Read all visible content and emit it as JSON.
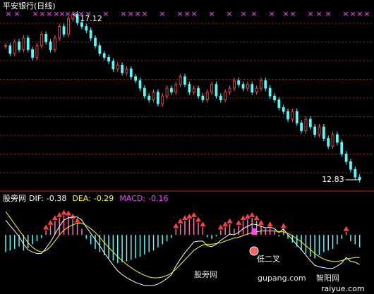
{
  "chart_data": [
    {
      "type": "candle",
      "title": "平安银行(日线)",
      "up_color": "#ff5454",
      "down_color": "#54fcfc",
      "values": [
        16.3,
        16.1,
        16.4,
        16.2,
        16.5,
        16.2,
        16.0,
        16.3,
        16.6,
        16.4,
        16.2,
        16.5,
        16.8,
        16.6,
        17.0,
        17.12,
        16.9,
        16.8,
        16.7,
        16.5,
        16.3,
        16.1,
        16.0,
        15.9,
        15.7,
        15.8,
        15.6,
        15.7,
        15.5,
        15.4,
        15.2,
        15.0,
        14.9,
        15.1,
        14.8,
        15.0,
        15.2,
        15.1,
        15.3,
        15.5,
        15.3,
        15.1,
        15.2,
        15.0,
        14.9,
        15.1,
        15.3,
        15.0,
        14.9,
        15.1,
        15.2,
        15.4,
        15.3,
        15.2,
        15.3,
        15.1,
        15.2,
        15.4,
        15.2,
        15.0,
        14.9,
        14.7,
        14.6,
        14.4,
        14.6,
        14.3,
        14.1,
        14.4,
        14.2,
        14.0,
        14.2,
        13.9,
        13.7,
        14.0,
        13.8,
        13.5,
        13.3,
        13.1,
        12.9,
        12.83
      ]
    },
    {
      "type": "macd",
      "title": "股旁网",
      "annotation": "低二叉",
      "up_color": "#ff6fb0",
      "down_color": "#54fcfc",
      "hist_name": "MACD:",
      "hist_color": "#ff44ff",
      "values": [
        -0.22,
        -0.2,
        -0.18,
        -0.15,
        -0.2,
        -0.17,
        -0.12,
        -0.08,
        -0.04,
        0.06,
        0.12,
        0.18,
        0.22,
        0.25,
        0.24,
        0.2,
        0.15,
        0.08,
        -0.05,
        -0.12,
        -0.18,
        -0.22,
        -0.26,
        -0.3,
        -0.33,
        -0.36,
        -0.35,
        -0.34,
        -0.32,
        -0.3,
        -0.28,
        -0.25,
        -0.22,
        -0.2,
        -0.16,
        -0.12,
        -0.08,
        -0.04,
        0.08,
        0.14,
        0.18,
        0.2,
        0.22,
        0.16,
        0.1,
        -0.03,
        -0.05,
        -0.02,
        0.06,
        0.1,
        0.14,
        0.08,
        0.12,
        0.18,
        0.2,
        0.22,
        0.18,
        0.12,
        0.08,
        0.1,
        0.06,
        -0.02,
        0.08,
        -0.05,
        -0.1,
        -0.15,
        -0.2,
        -0.24,
        -0.28,
        -0.3,
        -0.26,
        -0.22,
        -0.2,
        -0.18,
        -0.12,
        -0.05,
        0.04,
        -0.08,
        -0.12,
        -0.16
      ],
      "series": [
        {
          "name": "DIF:",
          "color": "#ffffff",
          "values": [
            0.19,
            0.12,
            0.05,
            -0.02,
            -0.12,
            -0.19,
            -0.22,
            -0.24,
            -0.24,
            -0.17,
            -0.09,
            0.01,
            0.11,
            0.19,
            0.22,
            0.23,
            0.23,
            0.19,
            0.1,
            0.02,
            -0.06,
            -0.14,
            -0.23,
            -0.31,
            -0.39,
            -0.46,
            -0.51,
            -0.55,
            -0.58,
            -0.61,
            -0.63,
            -0.65,
            -0.65,
            -0.65,
            -0.63,
            -0.6,
            -0.56,
            -0.51,
            -0.4,
            -0.31,
            -0.23,
            -0.16,
            -0.09,
            -0.08,
            -0.08,
            -0.14,
            -0.15,
            -0.12,
            -0.07,
            -0.03,
            0.01,
            0,
            0.03,
            0.08,
            0.11,
            0.14,
            0.13,
            0.11,
            0.09,
            0.1,
            0.08,
            0.03,
            0.08,
            0,
            -0.06,
            -0.13,
            -0.19,
            -0.26,
            -0.33,
            -0.39,
            -0.41,
            -0.42,
            -0.43,
            -0.43,
            -0.4,
            -0.36,
            -0.29,
            -0.34,
            -0.35,
            -0.38
          ]
        },
        {
          "name": "DEA:",
          "color": "#ffff00",
          "values": [
            0.3,
            0.22,
            0.14,
            0.06,
            -0.02,
            -0.1,
            -0.16,
            -0.2,
            -0.22,
            -0.2,
            -0.15,
            -0.08,
            0.0,
            0.06,
            0.1,
            0.13,
            0.15,
            0.15,
            0.12,
            0.08,
            0.03,
            -0.03,
            -0.1,
            -0.16,
            -0.22,
            -0.28,
            -0.33,
            -0.38,
            -0.42,
            -0.46,
            -0.49,
            -0.52,
            -0.54,
            -0.55,
            -0.55,
            -0.54,
            -0.52,
            -0.49,
            -0.44,
            -0.38,
            -0.32,
            -0.26,
            -0.2,
            -0.16,
            -0.13,
            -0.12,
            -0.12,
            -0.11,
            -0.1,
            -0.08,
            -0.06,
            -0.04,
            -0.03,
            -0.01,
            0.01,
            0.03,
            0.04,
            0.05,
            0.05,
            0.05,
            0.05,
            0.04,
            0.04,
            0.02,
            -0.01,
            -0.05,
            -0.09,
            -0.14,
            -0.19,
            -0.24,
            -0.28,
            -0.31,
            -0.33,
            -0.34,
            -0.34,
            -0.33,
            -0.31,
            -0.3,
            -0.29,
            -0.29
          ]
        }
      ]
    }
  ],
  "watermark": {
    "left": "股旁网",
    "left_url": "gupang.com",
    "right": "智阳网",
    "right_url": "raiyue.com"
  }
}
